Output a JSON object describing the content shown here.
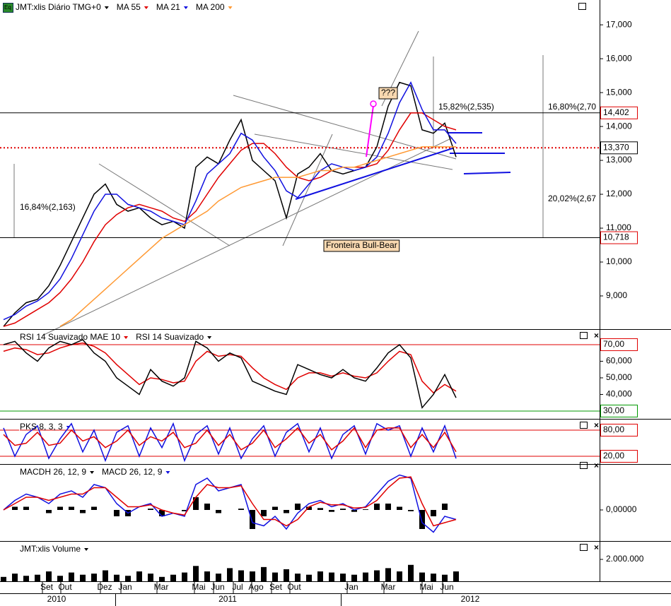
{
  "chart_data": [
    {
      "type": "line",
      "title": "JMT:xlis Diário TMG+0",
      "ylim": [
        8020,
        17670
      ],
      "yticks": [
        {
          "value": 9000,
          "label": "9,000"
        },
        {
          "value": 10000,
          "label": "10,000"
        },
        {
          "value": 11000,
          "label": "11,000"
        },
        {
          "value": 12000,
          "label": "12,000"
        },
        {
          "value": 13000,
          "label": "13,000"
        },
        {
          "value": 14000,
          "label": "14,000"
        },
        {
          "value": 15000,
          "label": "15,000"
        },
        {
          "value": 16000,
          "label": "16,000"
        },
        {
          "value": 17000,
          "label": "17,000"
        }
      ],
      "series": [
        {
          "color": "#000000",
          "values": [
            8100,
            8500,
            8800,
            8900,
            9300,
            9900,
            10600,
            11300,
            12000,
            12300,
            11700,
            11500,
            11600,
            11300,
            11100,
            11200,
            11000,
            12800,
            13100,
            12900,
            13600,
            14200,
            13000,
            12700,
            12400,
            11300,
            12600,
            12800,
            13200,
            12700,
            12600,
            12700,
            12800,
            13400,
            14600,
            15300,
            15200,
            13900,
            13800,
            14100,
            13100
          ]
        },
        {
          "name": "MA 55",
          "color": "#e00000",
          "values": [
            8100,
            8200,
            8400,
            8600,
            8800,
            9100,
            9500,
            10000,
            10600,
            11100,
            11400,
            11600,
            11700,
            11600,
            11500,
            11300,
            11200,
            11500,
            12000,
            12500,
            12900,
            13300,
            13500,
            13500,
            13200,
            12800,
            12500,
            12400,
            12500,
            12700,
            12800,
            12800,
            12800,
            12900,
            13300,
            13900,
            14400,
            14400,
            14200,
            14000,
            13900
          ]
        },
        {
          "name": "MA 21",
          "color": "#1010e0",
          "values": [
            8300,
            8450,
            8700,
            8850,
            9100,
            9500,
            10100,
            10800,
            11500,
            12000,
            12000,
            11700,
            11600,
            11500,
            11300,
            11200,
            11100,
            11800,
            12600,
            12900,
            13200,
            13800,
            13600,
            13100,
            12700,
            12100,
            11900,
            12300,
            12700,
            12900,
            12800,
            12700,
            12800,
            13100,
            13800,
            14700,
            15300,
            14500,
            13900,
            13900,
            13500
          ]
        },
        {
          "name": "MA 200",
          "color": "#ff9933",
          "values": [
            null,
            null,
            null,
            null,
            null,
            8100,
            8300,
            8600,
            8900,
            9200,
            9500,
            9800,
            10100,
            10400,
            10700,
            10900,
            11100,
            11300,
            11500,
            11800,
            12000,
            12200,
            12300,
            12400,
            12500,
            12500,
            12500,
            12600,
            12700,
            12700,
            12800,
            12800,
            12900,
            13000,
            13100,
            13200,
            13300,
            13400,
            13400,
            13400,
            13400
          ]
        }
      ],
      "levels": [
        {
          "value": 14402,
          "label": "14,402",
          "color": "#e00000"
        },
        {
          "value": 13370,
          "label": "13,370",
          "color": "#000000"
        },
        {
          "value": 10718,
          "label": "10,718",
          "color": "#e00000"
        }
      ],
      "annotations": [
        "16,84%(2,163)",
        "15,82%(2,535)",
        "16,80%(2,70",
        "20,02%(2,67",
        "Fronteira Bull-Bear",
        "???"
      ]
    },
    {
      "type": "line",
      "ylim": [
        25.3,
        78.5
      ],
      "yticks": [
        {
          "value": 40,
          "label": "40,000"
        },
        {
          "value": 50,
          "label": "50,000"
        },
        {
          "value": 60,
          "label": "60,000"
        }
      ],
      "series": [
        {
          "name": "RSI 14 Suavizado MAE 10",
          "color": "#e00000",
          "values": [
            66,
            68,
            67,
            64,
            65,
            68,
            70,
            71,
            69,
            65,
            58,
            52,
            46,
            50,
            49,
            47,
            48,
            60,
            66,
            63,
            64,
            63,
            56,
            50,
            46,
            43,
            50,
            53,
            53,
            51,
            53,
            51,
            50,
            53,
            60,
            66,
            64,
            48,
            41,
            46,
            42
          ]
        },
        {
          "name": "RSI 14 Suavizado",
          "color": "#000000",
          "values": [
            70,
            72,
            65,
            60,
            68,
            72,
            70,
            73,
            65,
            60,
            50,
            45,
            40,
            55,
            48,
            45,
            50,
            72,
            68,
            60,
            65,
            62,
            48,
            45,
            42,
            40,
            58,
            55,
            52,
            50,
            55,
            50,
            48,
            56,
            65,
            70,
            62,
            32,
            40,
            52,
            38
          ]
        }
      ],
      "levels": [
        {
          "value": 70,
          "label": "70,00",
          "color": "#e00000"
        },
        {
          "value": 30,
          "label": "30,00",
          "color": "#009900"
        }
      ]
    },
    {
      "type": "line",
      "ylim": [
        2.2,
        102.7
      ],
      "yticks": [],
      "series": [
        {
          "name": "PKS 8, 3, 3",
          "color": "#1010e0",
          "values": [
            85,
            20,
            70,
            90,
            15,
            60,
            95,
            30,
            80,
            10,
            75,
            90,
            20,
            85,
            40,
            95,
            10,
            70,
            90,
            25,
            85,
            15,
            60,
            90,
            20,
            75,
            95,
            30,
            85,
            15,
            70,
            90,
            25,
            95,
            80,
            90,
            20,
            85,
            30,
            90,
            15
          ]
        },
        {
          "color": "#e00000",
          "values": [
            70,
            45,
            50,
            75,
            45,
            50,
            80,
            55,
            65,
            40,
            55,
            80,
            45,
            65,
            55,
            75,
            40,
            50,
            80,
            45,
            70,
            35,
            50,
            80,
            40,
            60,
            85,
            50,
            70,
            35,
            55,
            85,
            40,
            80,
            85,
            85,
            40,
            70,
            40,
            75,
            30
          ]
        }
      ],
      "levels": [
        {
          "value": 80,
          "label": "80,00",
          "color": "#e00000"
        },
        {
          "value": 20,
          "label": "20,00",
          "color": "#e00000"
        }
      ]
    },
    {
      "type": "line",
      "ylim": [
        -489,
        700
      ],
      "yticks": [
        {
          "value": 0,
          "label": "0,00000"
        }
      ],
      "series": [
        {
          "name": "MACDH 26, 12, 9",
          "kind": "bar",
          "color": "#000000",
          "values": [
            0,
            50,
            50,
            0,
            -50,
            50,
            50,
            -50,
            50,
            0,
            -100,
            -100,
            0,
            20,
            -100,
            0,
            -20,
            200,
            100,
            -50,
            0,
            20,
            -300,
            -100,
            50,
            -50,
            100,
            50,
            30,
            -30,
            20,
            -30,
            10,
            100,
            100,
            50,
            -20,
            -300,
            -100,
            100,
            0
          ]
        },
        {
          "name": "MACD 26, 12, 9",
          "color": "#1010e0",
          "values": [
            0,
            150,
            250,
            200,
            100,
            250,
            300,
            200,
            400,
            350,
            100,
            -50,
            50,
            100,
            -100,
            -50,
            -100,
            400,
            500,
            300,
            350,
            400,
            -200,
            -250,
            -100,
            -300,
            -50,
            100,
            150,
            50,
            100,
            0,
            50,
            250,
            450,
            550,
            500,
            -200,
            -350,
            -100,
            -150
          ]
        },
        {
          "color": "#e00000",
          "values": [
            0,
            100,
            200,
            200,
            150,
            200,
            250,
            250,
            350,
            350,
            200,
            50,
            50,
            80,
            0,
            -50,
            -80,
            200,
            400,
            350,
            350,
            380,
            100,
            -150,
            -150,
            -250,
            -150,
            50,
            120,
            80,
            80,
            30,
            40,
            150,
            350,
            500,
            520,
            100,
            -250,
            -200,
            -150
          ]
        }
      ],
      "levels": []
    },
    {
      "type": "line",
      "ylim": [
        0,
        3550000
      ],
      "yticks": [
        {
          "value": 2000000,
          "label": "2.000.000"
        }
      ],
      "series": [
        {
          "name": "JMT:xlis Volume",
          "kind": "bar",
          "color": "#000000",
          "values": [
            400000,
            700000,
            500000,
            600000,
            900000,
            500000,
            800000,
            600000,
            700000,
            1000000,
            600000,
            500000,
            900000,
            700000,
            400000,
            600000,
            800000,
            1400000,
            900000,
            700000,
            1200000,
            1000000,
            900000,
            1300000,
            800000,
            1100000,
            700000,
            600000,
            900000,
            800000,
            700000,
            600000,
            800000,
            1000000,
            1200000,
            900000,
            1500000,
            800000,
            700000,
            600000,
            900000
          ]
        }
      ],
      "levels": []
    }
  ],
  "x_axis": {
    "months": [
      "Set",
      "Out",
      "Dez",
      "Jan",
      "Mar",
      "Mai",
      "Jun",
      "Jul",
      "Ago",
      "Set",
      "Out",
      "Jan",
      "Mar",
      "Mai",
      "Jun"
    ],
    "years": [
      "2010",
      "2011",
      "2012"
    ]
  }
}
